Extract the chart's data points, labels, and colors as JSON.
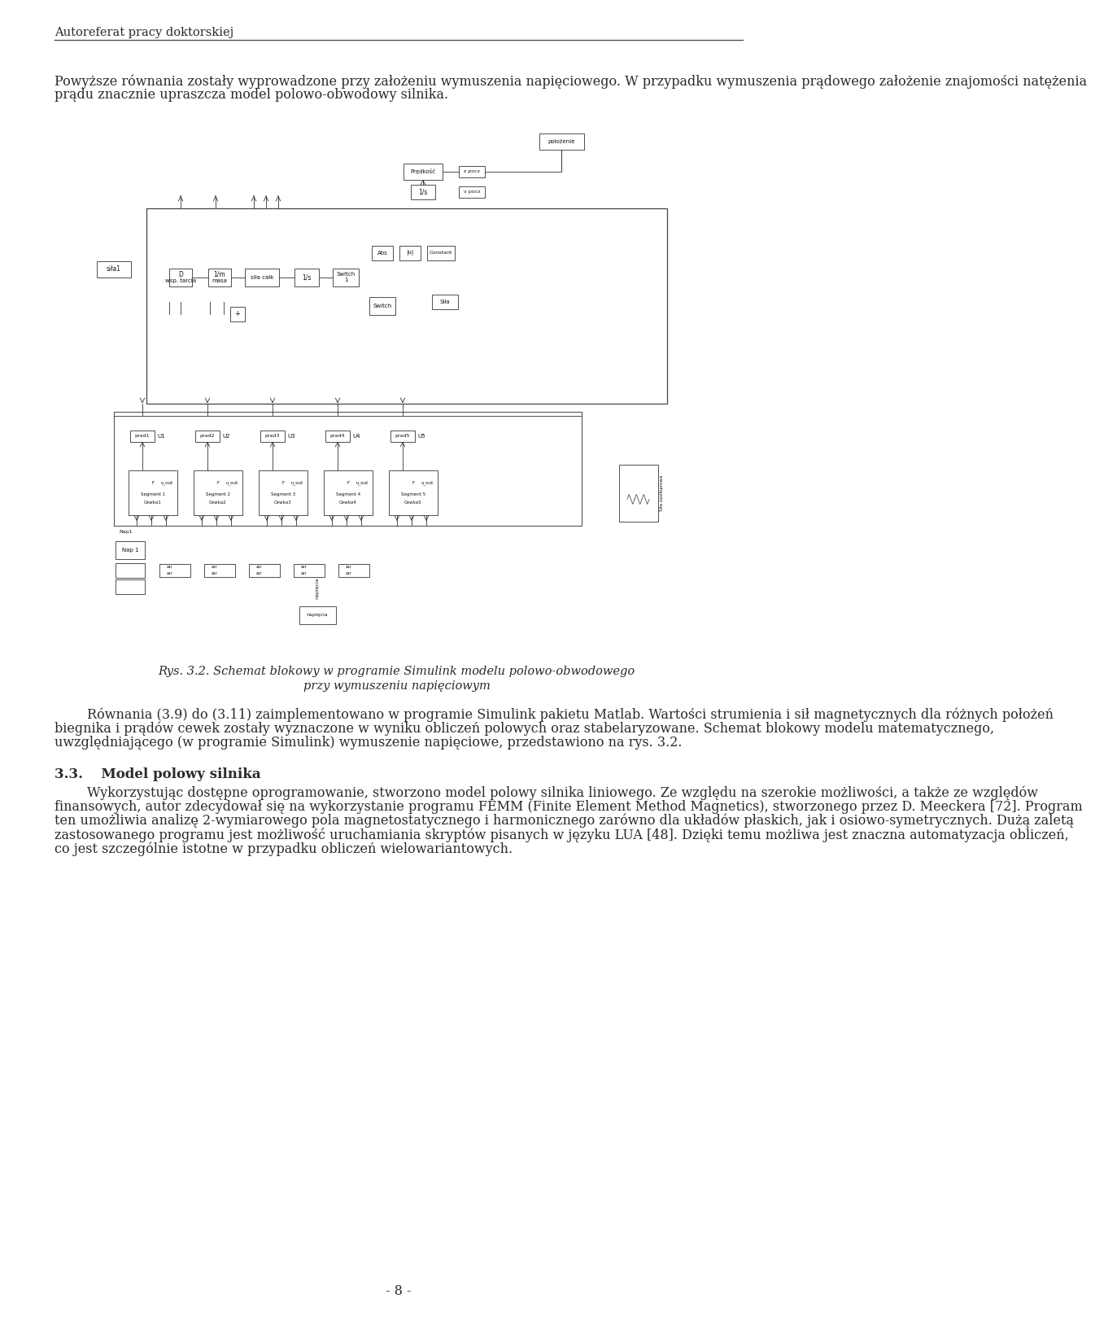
{
  "header_text": "Autoreferat pracy doktorskiej",
  "page_number": "- 8 -",
  "bg_color": "#ffffff",
  "text_color": "#2a2a2a",
  "font_size_header": 10.5,
  "font_size_body": 11.5,
  "font_size_caption": 10.5,
  "para1": "Powyższe równania zostały wyprowadzone przy założeniu wymuszenia napięciowego. W przypadku wymuszenia prądowego założenie znajomości natężenia prądu znacznie upraszcza model polowo-obwodowy silnika.",
  "fig_caption_line1": "Rys. 3.2. Schemat blokowy w programie Simulink modelu polowo-obwodowego",
  "fig_caption_line2": "przy wymuszeniu napięciowym",
  "para2": "Równania (3.9) do (3.11) zaimplementowano w programie Simulink pakietu Matlab. Wartości strumienia i sił magnetycznych dla różnych położeń biegnika i prądów cewek zostały wyznaczone w wyniku obliczeń polowych oraz stabelaryzowane. Schemat blokowy modelu matematycznego, uwzględniającego (w programie Simulink) wymuszenie napięciowe, przedstawiono na rys. 3.2.",
  "section_header": "3.3.  Model polowy silnika",
  "para3": "Wykorzystując dostępne oprogramowanie, stworzono model polowy silnika liniowego. Ze względu na szerokie możliwości, a także ze względów finansowych, autor zdecydował się na wykorzystanie programu FEMM (Finite Element Method Magnetics), stworzonego przez D. Meeckera [72]. Program ten umożliwia analizę 2-wymiarowego pola magnetostatycznego i harmonicznego zarówno dla układów płaskich, jak i osiowo-symetrycznych. Dużą zaletą zastosowanego programu jest możliwość uruchamiania skryptów pisanych w języku LUA [48]. Dzięki temu możliwa jest znaczna automatyzacja obliczeń, co jest szczególnie istotne w przypadku obliczeń wielowariantowych."
}
